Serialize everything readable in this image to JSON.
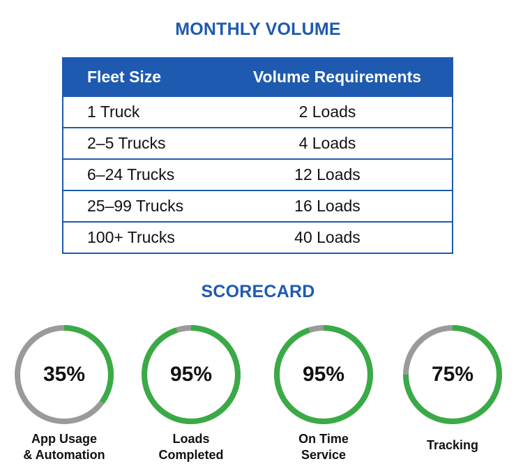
{
  "monthly_volume": {
    "title": "MONTHLY VOLUME",
    "headers": [
      "Fleet Size",
      "Volume Requirements"
    ],
    "rows": [
      [
        "1 Truck",
        "2 Loads"
      ],
      [
        "2–5 Trucks",
        "4 Loads"
      ],
      [
        "6–24 Trucks",
        "12 Loads"
      ],
      [
        "25–99 Trucks",
        "16 Loads"
      ],
      [
        "100+ Trucks",
        "40 Loads"
      ]
    ]
  },
  "scorecard": {
    "title": "SCORECARD",
    "gauges": [
      {
        "value": 35,
        "value_label": "35%",
        "label_line1": "App Usage",
        "label_line2": "& Automation"
      },
      {
        "value": 95,
        "value_label": "95%",
        "label_line1": "Loads",
        "label_line2": "Completed"
      },
      {
        "value": 95,
        "value_label": "95%",
        "label_line1": "On Time",
        "label_line2": "Service"
      },
      {
        "value": 75,
        "value_label": "75%",
        "label_line1": "Tracking",
        "label_line2": ""
      }
    ],
    "fill_color": "#3aaa46",
    "track_color": "#9a9a9a"
  },
  "colors": {
    "accent": "#1e5ab0"
  }
}
